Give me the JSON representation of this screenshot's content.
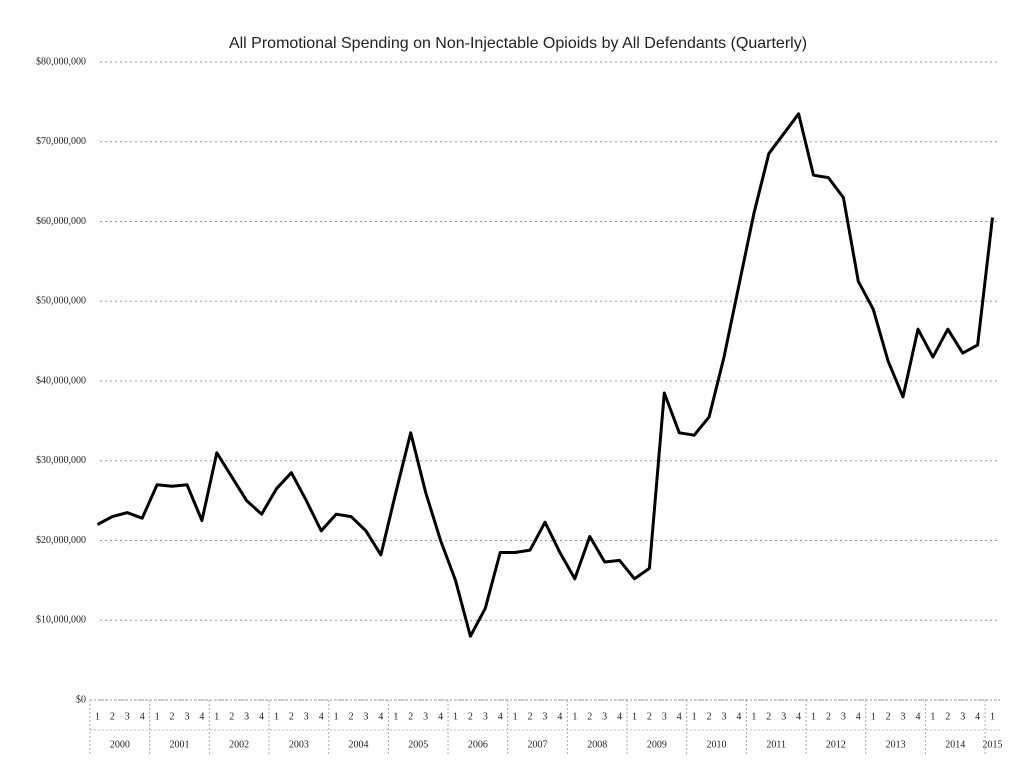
{
  "chart_data": {
    "type": "line",
    "title": "All Promotional Spending on Non-Injectable Opioids by All Defendants (Quarterly)",
    "categories": [
      "1",
      "2",
      "3",
      "4",
      "1",
      "2",
      "3",
      "4",
      "1",
      "2",
      "3",
      "4",
      "1",
      "2",
      "3",
      "4",
      "1",
      "2",
      "3",
      "4",
      "1",
      "2",
      "3",
      "4",
      "1",
      "2",
      "3",
      "4",
      "1",
      "2",
      "3",
      "4",
      "1",
      "2",
      "3",
      "4",
      "1",
      "2",
      "3",
      "4",
      "1",
      "2",
      "3",
      "4",
      "1",
      "2",
      "3",
      "4",
      "1",
      "2",
      "3",
      "4",
      "1",
      "2",
      "3",
      "4",
      "1",
      "2",
      "3",
      "4",
      "1"
    ],
    "years": [
      "2000",
      "2001",
      "2002",
      "2003",
      "2004",
      "2005",
      "2006",
      "2007",
      "2008",
      "2009",
      "2010",
      "2011",
      "2012",
      "2013",
      "2014",
      "2015"
    ],
    "series": [
      {
        "name": "Promotional Spending",
        "color": "#000000",
        "values": [
          22000000,
          23000000,
          23500000,
          22800000,
          27000000,
          26800000,
          27000000,
          22500000,
          31000000,
          28000000,
          25000000,
          23300000,
          26500000,
          28500000,
          25000000,
          21200000,
          23300000,
          23000000,
          21200000,
          18200000,
          26000000,
          33500000,
          26000000,
          20000000,
          15000000,
          8000000,
          11500000,
          18500000,
          18500000,
          18800000,
          22300000,
          18500000,
          15200000,
          20500000,
          17300000,
          17500000,
          15200000,
          16500000,
          38500000,
          33500000,
          33200000,
          35500000,
          43000000,
          52000000,
          61000000,
          68500000,
          71000000,
          73500000,
          65800000,
          65500000,
          63000000,
          52500000,
          49000000,
          42500000,
          38000000,
          46500000,
          43000000,
          46500000,
          43500000,
          44500000,
          60500000
        ]
      }
    ],
    "ylim": [
      0,
      80000000
    ],
    "yticks": [
      {
        "value": 0,
        "label": "$0"
      },
      {
        "value": 10000000,
        "label": "$10,000,000"
      },
      {
        "value": 20000000,
        "label": "$20,000,000"
      },
      {
        "value": 30000000,
        "label": "$30,000,000"
      },
      {
        "value": 40000000,
        "label": "$40,000,000"
      },
      {
        "value": 50000000,
        "label": "$50,000,000"
      },
      {
        "value": 60000000,
        "label": "$60,000,000"
      },
      {
        "value": 70000000,
        "label": "$70,000,000"
      },
      {
        "value": 80000000,
        "label": "$80,000,000"
      }
    ],
    "grid": true
  }
}
